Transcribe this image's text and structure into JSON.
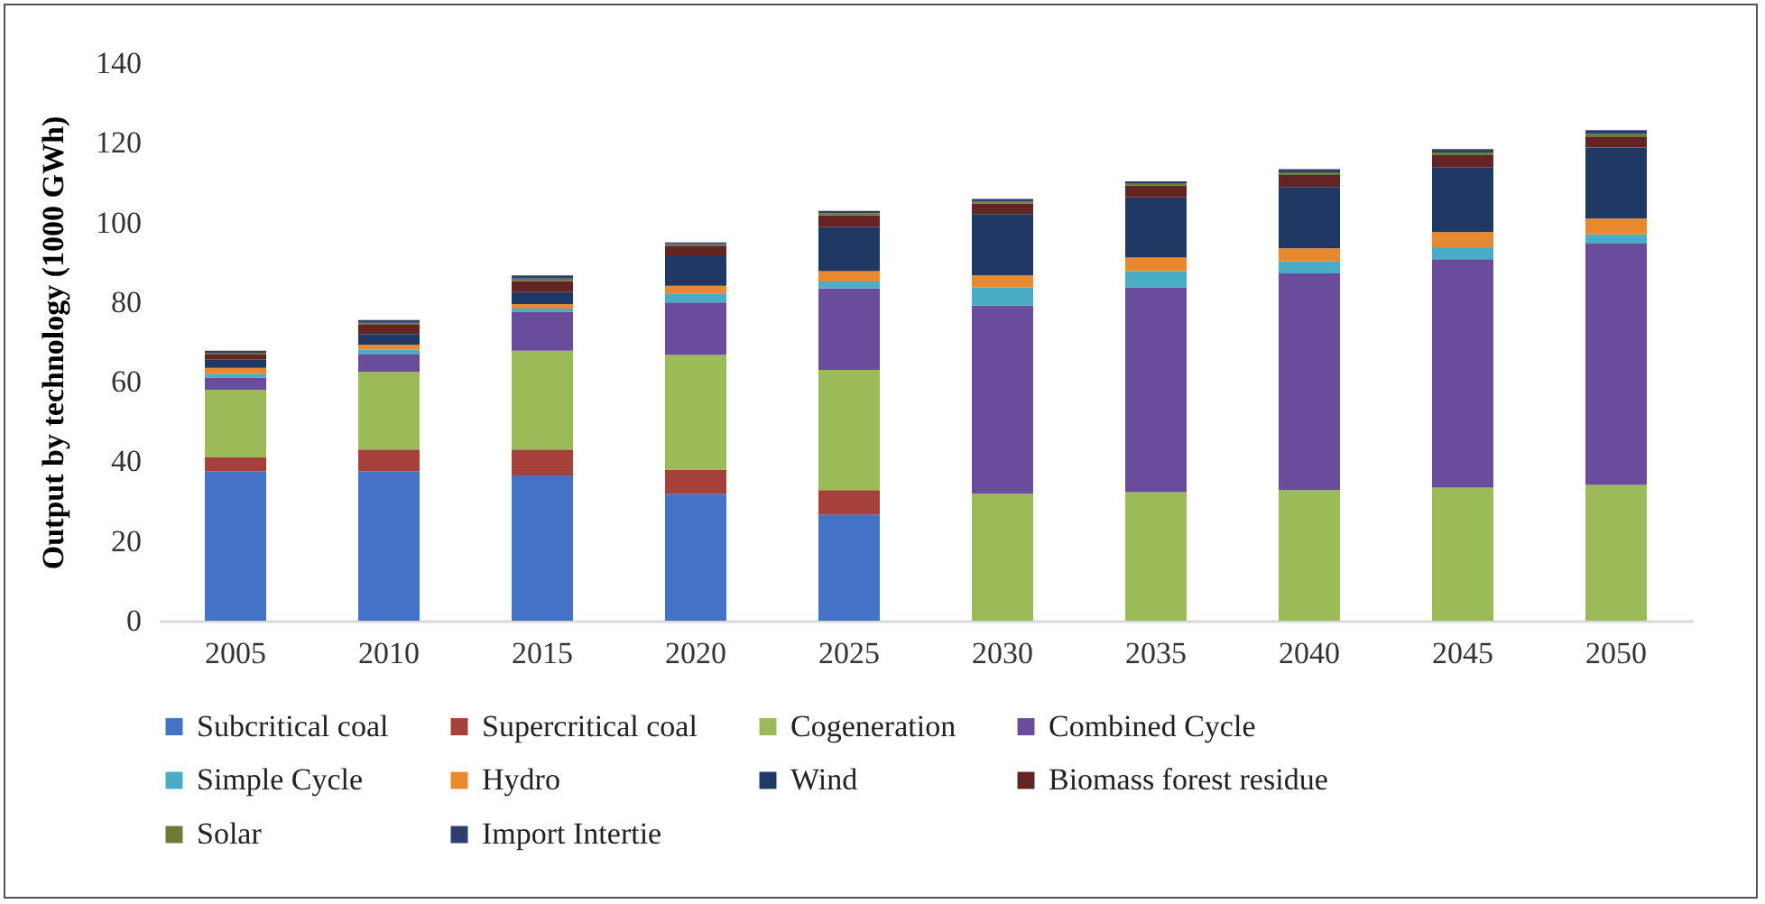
{
  "chart_data": {
    "type": "bar",
    "stacked": true,
    "ylabel": "Output by technology (1000 GWh)",
    "categories": [
      "2005",
      "2010",
      "2015",
      "2020",
      "2025",
      "2030",
      "2035",
      "2040",
      "2045",
      "2050"
    ],
    "ylim": [
      0,
      140
    ],
    "yticks": [
      0,
      20,
      40,
      60,
      80,
      100,
      120,
      140
    ],
    "grid": false,
    "legend": "bottom",
    "series": [
      {
        "name": "Subcritical coal",
        "color": "#4472c4",
        "values": [
          37.5,
          37.5,
          36.5,
          31.9,
          26.7,
          0,
          0,
          0,
          0,
          0
        ]
      },
      {
        "name": "Supercritical coal",
        "color": "#a5403a",
        "values": [
          3.5,
          5.5,
          6.5,
          6,
          6.1,
          0,
          0,
          0,
          0,
          0
        ]
      },
      {
        "name": "Cogeneration",
        "color": "#9bbb59",
        "values": [
          17,
          19.5,
          24.8,
          28.8,
          30.2,
          31.9,
          32.3,
          32.8,
          33.4,
          34.1
        ]
      },
      {
        "name": "Combined Cycle",
        "color": "#6a4c9c",
        "values": [
          3,
          4.5,
          9.8,
          13.2,
          20.4,
          47.3,
          51.4,
          54.4,
          57.4,
          60.6
        ]
      },
      {
        "name": "Simple Cycle",
        "color": "#4bacc6",
        "values": [
          1,
          1,
          0.8,
          2.3,
          1.8,
          4.5,
          4.1,
          3,
          3,
          2.3
        ]
      },
      {
        "name": "Hydro",
        "color": "#e8892f",
        "values": [
          1.5,
          1.3,
          1.1,
          1.9,
          2.6,
          3,
          3.4,
          3.3,
          3.8,
          4
        ]
      },
      {
        "name": "Wind",
        "color": "#1f3864",
        "values": [
          2,
          2.7,
          3,
          7.4,
          11,
          15.4,
          15.1,
          15.4,
          16.3,
          17.8
        ]
      },
      {
        "name": "Biomass forest residue",
        "color": "#632523",
        "values": [
          1.5,
          2.3,
          2.8,
          2.7,
          3,
          2.7,
          3,
          3,
          3,
          2.6
        ]
      },
      {
        "name": "Solar",
        "color": "#6b7c3a",
        "values": [
          0.3,
          0.5,
          0.6,
          0.4,
          0.5,
          0.5,
          0.4,
          0.7,
          0.7,
          0.8
        ]
      },
      {
        "name": "Import Intertie",
        "color": "#2e3f6e",
        "values": [
          0.5,
          0.7,
          0.8,
          0.4,
          0.6,
          0.6,
          0.6,
          0.8,
          0.8,
          1
        ]
      }
    ]
  }
}
